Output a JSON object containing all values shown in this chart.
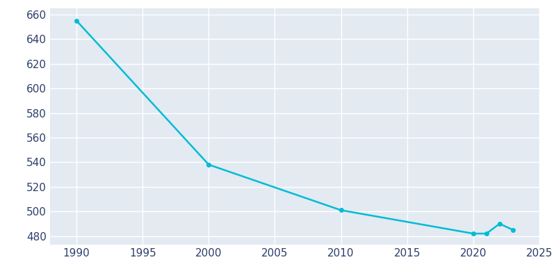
{
  "years": [
    1990,
    2000,
    2010,
    2020,
    2021,
    2022,
    2023
  ],
  "population": [
    655,
    538,
    501,
    482,
    482,
    490,
    485
  ],
  "line_color": "#00BCD4",
  "marker": "o",
  "marker_size": 4,
  "plot_bg_color": "#E3EAF2",
  "fig_bg_color": "#ffffff",
  "grid_color": "#ffffff",
  "xlim": [
    1988,
    2025
  ],
  "ylim": [
    473,
    665
  ],
  "yticks": [
    480,
    500,
    520,
    540,
    560,
    580,
    600,
    620,
    640,
    660
  ],
  "xticks": [
    1990,
    1995,
    2000,
    2005,
    2010,
    2015,
    2020,
    2025
  ],
  "tick_label_color": "#2c3e6b",
  "tick_label_fontsize": 11,
  "linewidth": 1.8
}
